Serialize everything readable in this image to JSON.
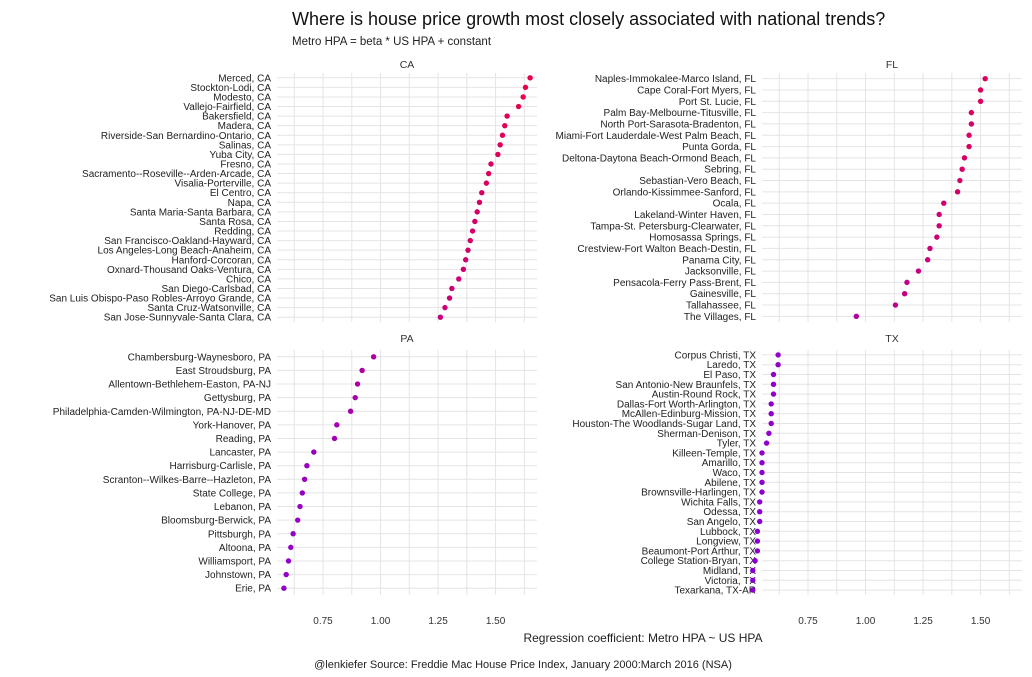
{
  "title": "Where is house price growth most closely associated with national trends?",
  "subtitle": "Metro HPA = beta * US HPA + constant",
  "xlabel": "Regression coefficient: Metro HPA ~ US HPA",
  "caption": "@lenkiefer Source: Freddie Mac House Price Index, January 2000:March 2016 (NSA)",
  "chart_data": {
    "type": "scatter",
    "x_ticks": [
      0.75,
      1.0,
      1.25,
      1.5
    ],
    "x_tick_labels": [
      "0.75",
      "1.00",
      "1.25",
      "1.50"
    ],
    "xlim": [
      0.55,
      1.68
    ],
    "grid": true,
    "color_low": "#8a00d4",
    "color_high": "#e8004a",
    "facets": [
      {
        "name": "CA",
        "points": [
          {
            "label": "Merced, CA",
            "value": 1.65
          },
          {
            "label": "Stockton-Lodi, CA",
            "value": 1.63
          },
          {
            "label": "Modesto, CA",
            "value": 1.62
          },
          {
            "label": "Vallejo-Fairfield, CA",
            "value": 1.6
          },
          {
            "label": "Bakersfield, CA",
            "value": 1.55
          },
          {
            "label": "Madera, CA",
            "value": 1.54
          },
          {
            "label": "Riverside-San Bernardino-Ontario, CA",
            "value": 1.53
          },
          {
            "label": "Salinas, CA",
            "value": 1.52
          },
          {
            "label": "Yuba City, CA",
            "value": 1.51
          },
          {
            "label": "Fresno, CA",
            "value": 1.48
          },
          {
            "label": "Sacramento--Roseville--Arden-Arcade, CA",
            "value": 1.47
          },
          {
            "label": "Visalia-Porterville, CA",
            "value": 1.46
          },
          {
            "label": "El Centro, CA",
            "value": 1.44
          },
          {
            "label": "Napa, CA",
            "value": 1.43
          },
          {
            "label": "Santa Maria-Santa Barbara, CA",
            "value": 1.42
          },
          {
            "label": "Santa Rosa, CA",
            "value": 1.41
          },
          {
            "label": "Redding, CA",
            "value": 1.4
          },
          {
            "label": "San Francisco-Oakland-Hayward, CA",
            "value": 1.39
          },
          {
            "label": "Los Angeles-Long Beach-Anaheim, CA",
            "value": 1.38
          },
          {
            "label": "Hanford-Corcoran, CA",
            "value": 1.37
          },
          {
            "label": "Oxnard-Thousand Oaks-Ventura, CA",
            "value": 1.36
          },
          {
            "label": "Chico, CA",
            "value": 1.34
          },
          {
            "label": "San Diego-Carlsbad, CA",
            "value": 1.31
          },
          {
            "label": "San Luis Obispo-Paso Robles-Arroyo Grande, CA",
            "value": 1.3
          },
          {
            "label": "Santa Cruz-Watsonville, CA",
            "value": 1.28
          },
          {
            "label": "San Jose-Sunnyvale-Santa Clara, CA",
            "value": 1.26
          }
        ]
      },
      {
        "name": "FL",
        "points": [
          {
            "label": "Naples-Immokalee-Marco Island, FL",
            "value": 1.52
          },
          {
            "label": "Cape Coral-Fort Myers, FL",
            "value": 1.5
          },
          {
            "label": "Port St. Lucie, FL",
            "value": 1.5
          },
          {
            "label": "Palm Bay-Melbourne-Titusville, FL",
            "value": 1.46
          },
          {
            "label": "North Port-Sarasota-Bradenton, FL",
            "value": 1.46
          },
          {
            "label": "Miami-Fort Lauderdale-West Palm Beach, FL",
            "value": 1.45
          },
          {
            "label": "Punta Gorda, FL",
            "value": 1.45
          },
          {
            "label": "Deltona-Daytona Beach-Ormond Beach, FL",
            "value": 1.43
          },
          {
            "label": "Sebring, FL",
            "value": 1.42
          },
          {
            "label": "Sebastian-Vero Beach, FL",
            "value": 1.41
          },
          {
            "label": "Orlando-Kissimmee-Sanford, FL",
            "value": 1.4
          },
          {
            "label": "Ocala, FL",
            "value": 1.34
          },
          {
            "label": "Lakeland-Winter Haven, FL",
            "value": 1.32
          },
          {
            "label": "Tampa-St. Petersburg-Clearwater, FL",
            "value": 1.32
          },
          {
            "label": "Homosassa Springs, FL",
            "value": 1.31
          },
          {
            "label": "Crestview-Fort Walton Beach-Destin, FL",
            "value": 1.28
          },
          {
            "label": "Panama City, FL",
            "value": 1.27
          },
          {
            "label": "Jacksonville, FL",
            "value": 1.23
          },
          {
            "label": "Pensacola-Ferry Pass-Brent, FL",
            "value": 1.18
          },
          {
            "label": "Gainesville, FL",
            "value": 1.17
          },
          {
            "label": "Tallahassee, FL",
            "value": 1.13
          },
          {
            "label": "The Villages, FL",
            "value": 0.96
          }
        ]
      },
      {
        "name": "PA",
        "points": [
          {
            "label": "Chambersburg-Waynesboro, PA",
            "value": 0.97
          },
          {
            "label": "East Stroudsburg, PA",
            "value": 0.92
          },
          {
            "label": "Allentown-Bethlehem-Easton, PA-NJ",
            "value": 0.9
          },
          {
            "label": "Gettysburg, PA",
            "value": 0.89
          },
          {
            "label": "Philadelphia-Camden-Wilmington, PA-NJ-DE-MD",
            "value": 0.87
          },
          {
            "label": "York-Hanover, PA",
            "value": 0.81
          },
          {
            "label": "Reading, PA",
            "value": 0.8
          },
          {
            "label": "Lancaster, PA",
            "value": 0.71
          },
          {
            "label": "Harrisburg-Carlisle, PA",
            "value": 0.68
          },
          {
            "label": "Scranton--Wilkes-Barre--Hazleton, PA",
            "value": 0.67
          },
          {
            "label": "State College, PA",
            "value": 0.66
          },
          {
            "label": "Lebanon, PA",
            "value": 0.65
          },
          {
            "label": "Bloomsburg-Berwick, PA",
            "value": 0.64
          },
          {
            "label": "Pittsburgh, PA",
            "value": 0.62
          },
          {
            "label": "Altoona, PA",
            "value": 0.61
          },
          {
            "label": "Williamsport, PA",
            "value": 0.6
          },
          {
            "label": "Johnstown, PA",
            "value": 0.59
          },
          {
            "label": "Erie, PA",
            "value": 0.58
          }
        ]
      },
      {
        "name": "TX",
        "points": [
          {
            "label": "Corpus Christi, TX",
            "value": 0.62
          },
          {
            "label": "Laredo, TX",
            "value": 0.62
          },
          {
            "label": "El Paso, TX",
            "value": 0.6
          },
          {
            "label": "San Antonio-New Braunfels, TX",
            "value": 0.6
          },
          {
            "label": "Austin-Round Rock, TX",
            "value": 0.6
          },
          {
            "label": "Dallas-Fort Worth-Arlington, TX",
            "value": 0.59
          },
          {
            "label": "McAllen-Edinburg-Mission, TX",
            "value": 0.59
          },
          {
            "label": "Houston-The Woodlands-Sugar Land, TX",
            "value": 0.59
          },
          {
            "label": "Sherman-Denison, TX",
            "value": 0.58
          },
          {
            "label": "Tyler, TX",
            "value": 0.57
          },
          {
            "label": "Killeen-Temple, TX",
            "value": 0.55
          },
          {
            "label": "Amarillo, TX",
            "value": 0.55
          },
          {
            "label": "Waco, TX",
            "value": 0.55
          },
          {
            "label": "Abilene, TX",
            "value": 0.55
          },
          {
            "label": "Brownsville-Harlingen, TX",
            "value": 0.55
          },
          {
            "label": "Wichita Falls, TX",
            "value": 0.54
          },
          {
            "label": "Odessa, TX",
            "value": 0.54
          },
          {
            "label": "San Angelo, TX",
            "value": 0.54
          },
          {
            "label": "Lubbock, TX",
            "value": 0.53
          },
          {
            "label": "Longview, TX",
            "value": 0.53
          },
          {
            "label": "Beaumont-Port Arthur, TX",
            "value": 0.53
          },
          {
            "label": "College Station-Bryan, TX",
            "value": 0.52
          },
          {
            "label": "Midland, TX",
            "value": 0.51
          },
          {
            "label": "Victoria, TX",
            "value": 0.51
          },
          {
            "label": "Texarkana, TX-AR",
            "value": 0.51
          }
        ]
      }
    ]
  }
}
